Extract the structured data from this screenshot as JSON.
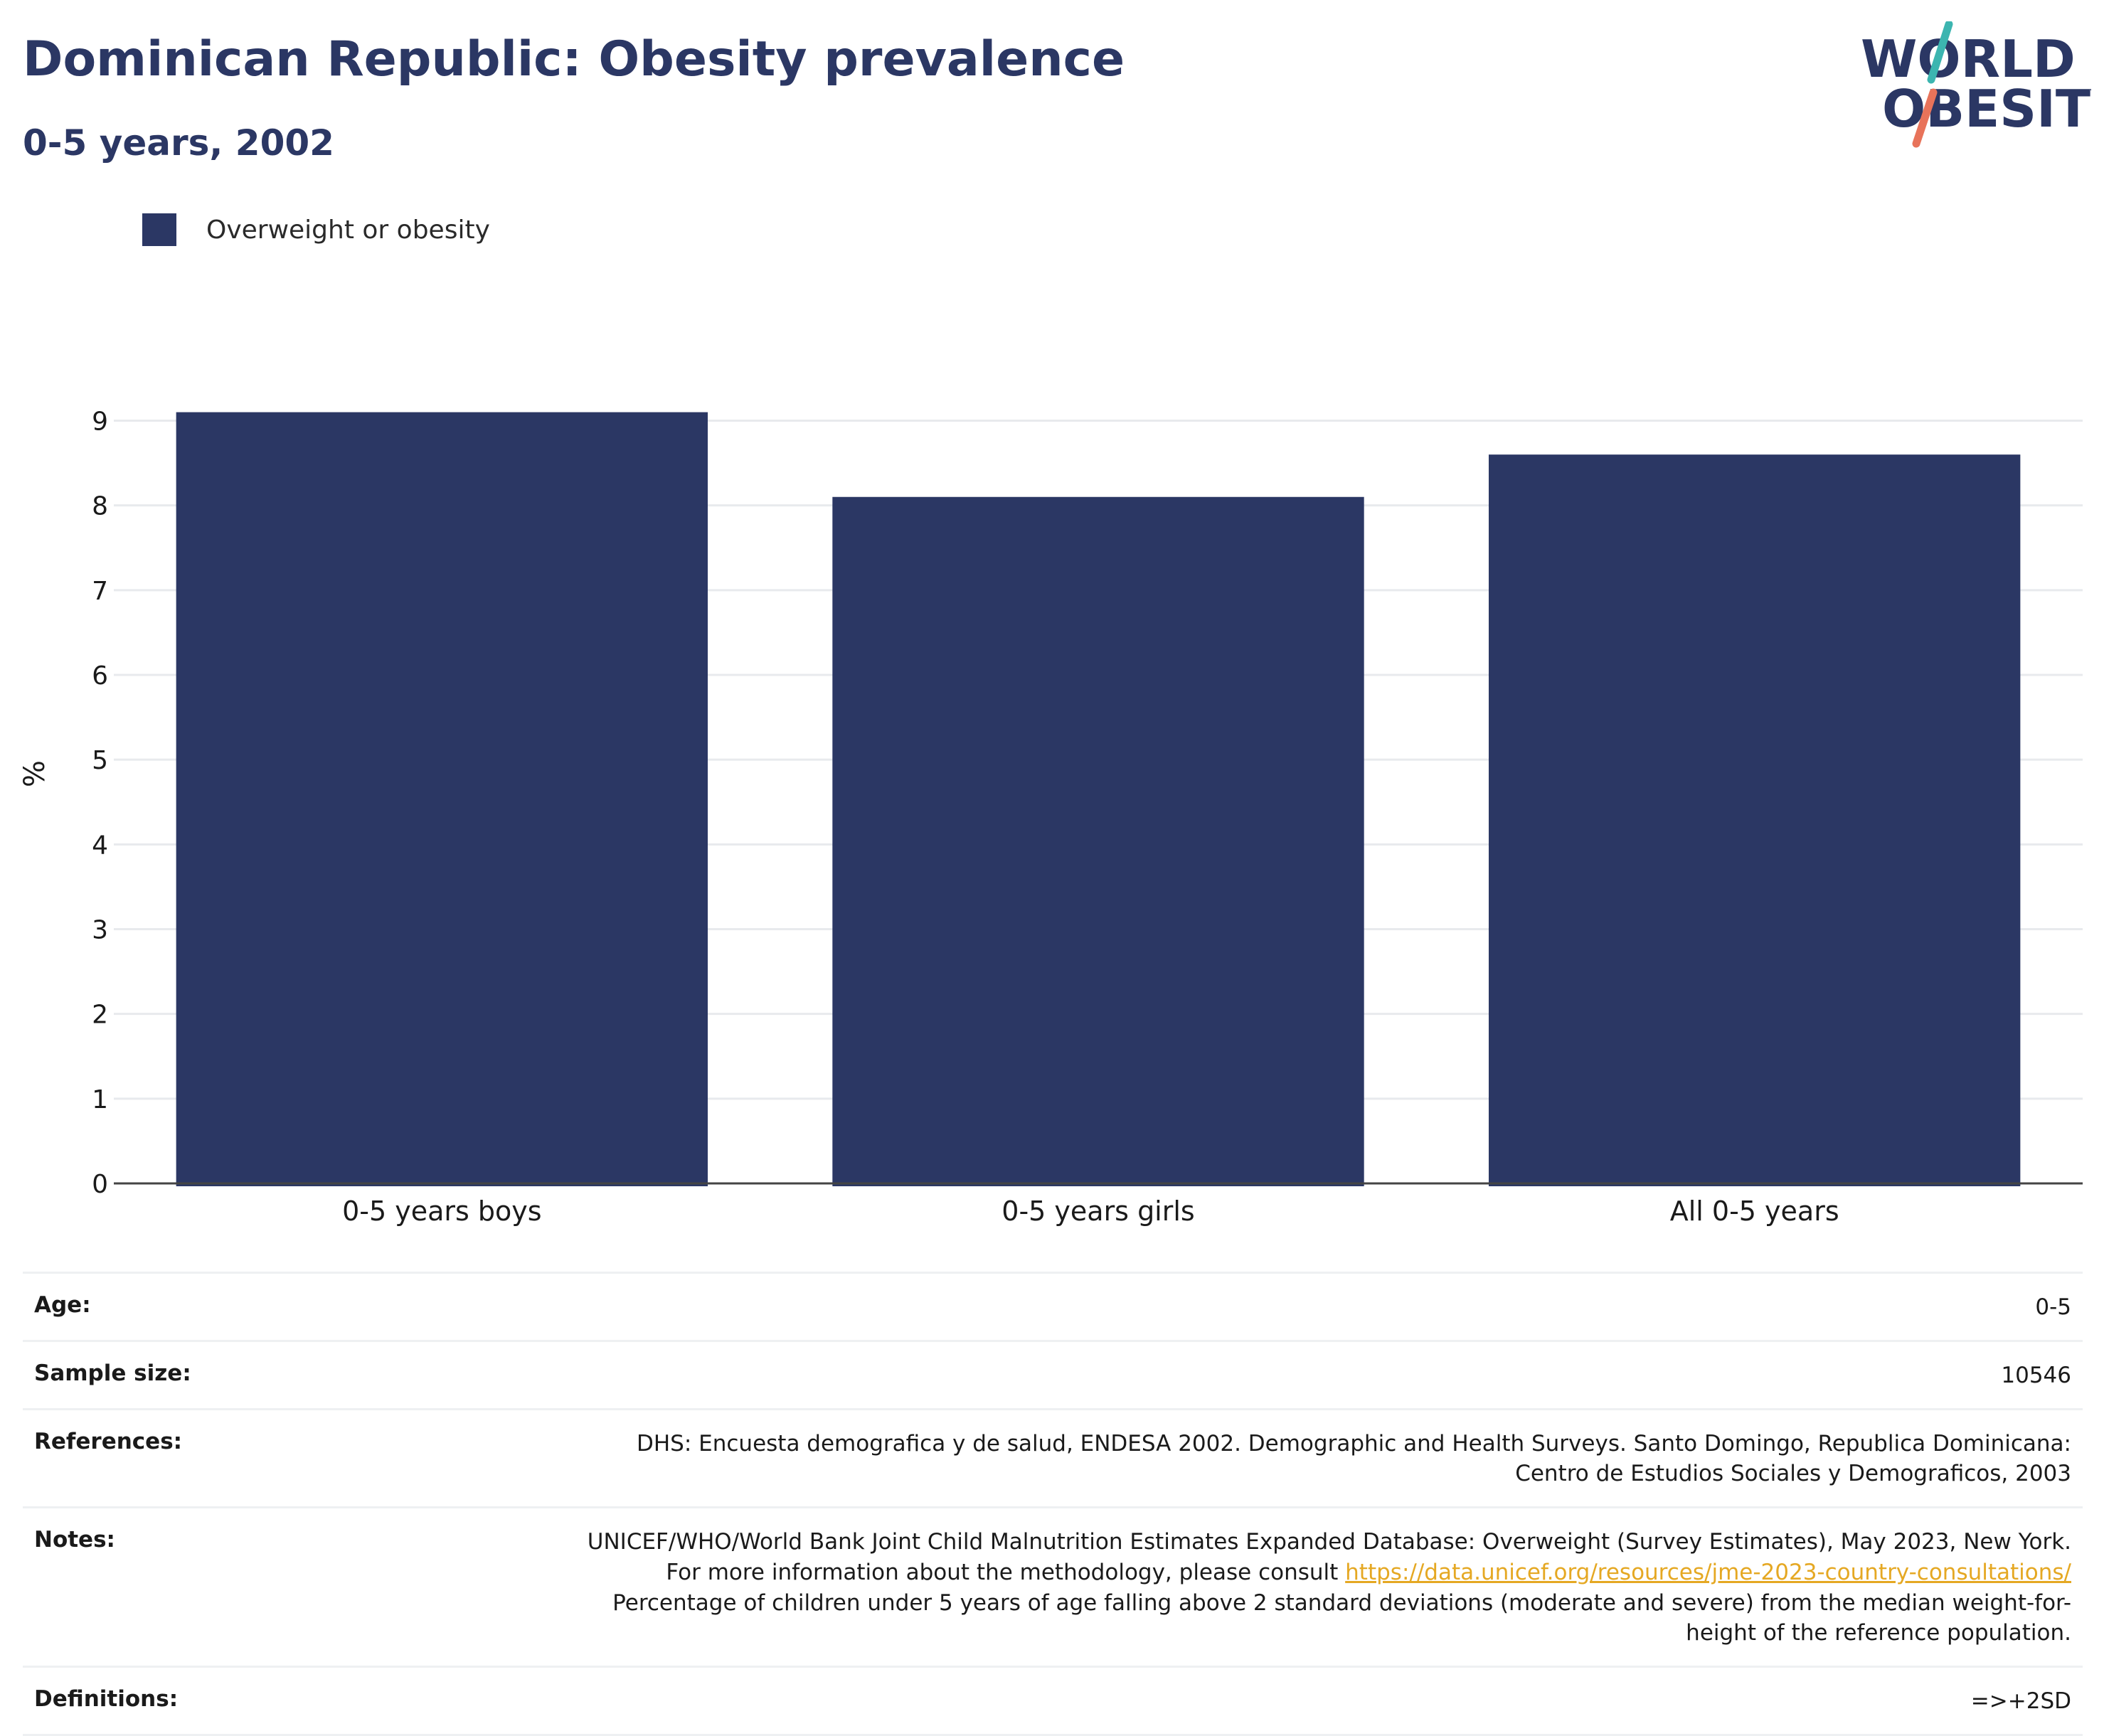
{
  "header": {
    "title": "Dominican Republic: Obesity prevalence",
    "subtitle": "0-5 years, 2002"
  },
  "logo": {
    "line1": "WORLD",
    "line2": "OBESITY"
  },
  "colors": {
    "bar": "#2b3764",
    "accent_teal": "#3cb5b0",
    "accent_coral": "#e8735a",
    "link": "#e5a823"
  },
  "chart_data": {
    "type": "bar",
    "categories": [
      "0-5 years boys",
      "0-5 years girls",
      "All 0-5 years"
    ],
    "series": [
      {
        "name": "Overweight or obesity",
        "values": [
          9.1,
          8.1,
          8.6
        ]
      }
    ],
    "ylabel": "%",
    "ylim": [
      0,
      9.6
    ],
    "yticks": [
      0,
      1,
      2,
      3,
      4,
      5,
      6,
      7,
      8,
      9
    ],
    "grid": true,
    "legend_position": "top-left"
  },
  "info": {
    "age_label": "Age:",
    "age_value": "0-5",
    "sample_label": "Sample size:",
    "sample_value": "10546",
    "references_label": "References:",
    "references_value": "DHS: Encuesta demografica y de salud, ENDESA 2002. Demographic and Health Surveys. Santo Domingo, Republica Dominicana: Centro de Estudios Sociales y Demograficos, 2003",
    "notes_label": "Notes:",
    "notes_text_1": "UNICEF/WHO/World Bank Joint Child Malnutrition Estimates Expanded Database: Overweight (Survey Estimates), May 2023, New York. For more information about the methodology, please consult ",
    "notes_link": "https://data.unicef.org/resources/jme-2023-country-consultations/",
    "notes_text_2": " Percentage of children under 5 years of age falling above 2 standard deviations (moderate and severe) from the median weight-for-height of the reference population.",
    "definitions_label": "Definitions:",
    "definitions_value": "=>+2SD"
  }
}
